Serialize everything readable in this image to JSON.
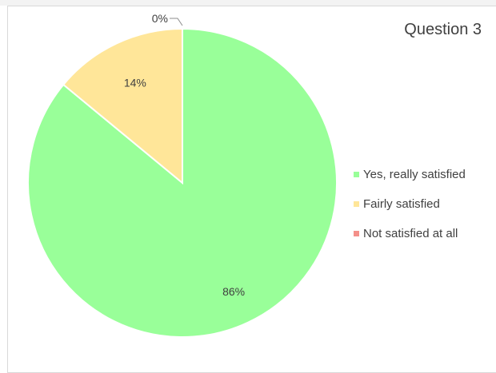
{
  "chart_data": {
    "type": "pie",
    "title": "Question 3",
    "categories": [
      "Yes, really satisfied",
      "Fairly satisfied",
      "Not satisfied at all"
    ],
    "values": [
      86,
      14,
      0
    ],
    "labels": [
      "86%",
      "14%",
      "0%"
    ],
    "colors": [
      "#99ff99",
      "#ffe699",
      "#f4908a"
    ],
    "legend_position": "right"
  }
}
